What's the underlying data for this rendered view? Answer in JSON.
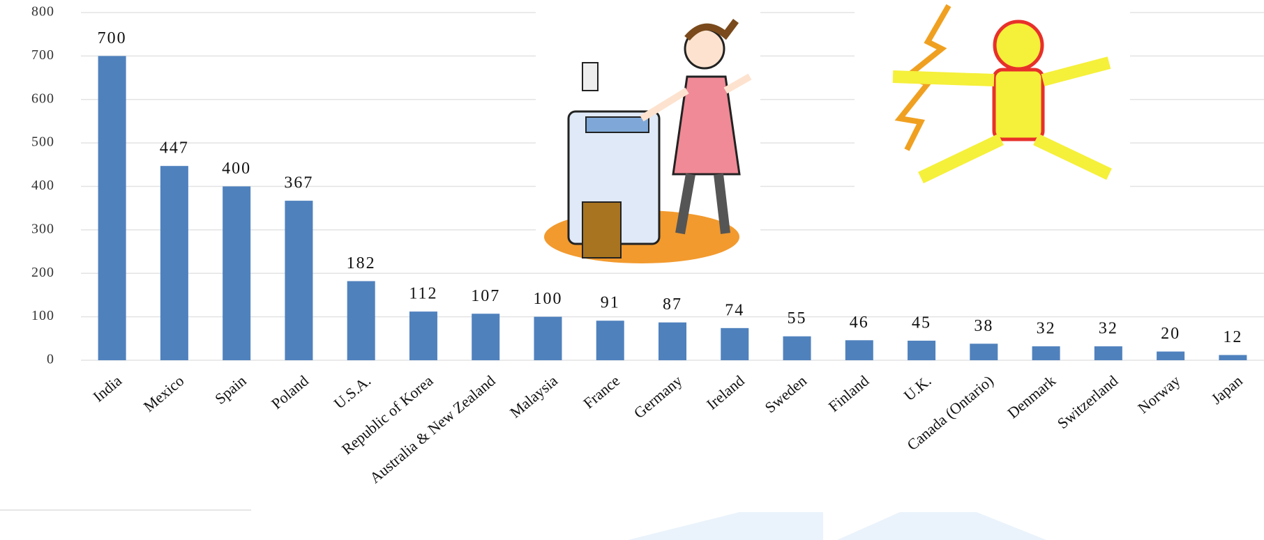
{
  "chart_data": {
    "type": "bar",
    "categories": [
      "India",
      "Mexico",
      "Spain",
      "Poland",
      "U.S.A.",
      "Republic of Korea",
      "Australia & New Zealand",
      "Malaysia",
      "France",
      "Germany",
      "Ireland",
      "Sweden",
      "Finland",
      "U.K.",
      "Canada (Ontario)",
      "Denmark",
      "Switzerland",
      "Norway",
      "Japan"
    ],
    "values": [
      700,
      447,
      400,
      367,
      182,
      112,
      107,
      100,
      91,
      87,
      74,
      55,
      46,
      45,
      38,
      32,
      32,
      20,
      12
    ],
    "color": "#4f81bd",
    "ylim": [
      0,
      800
    ],
    "yticks": [
      0,
      100,
      200,
      300,
      400,
      500,
      600,
      700,
      800
    ],
    "grid": true
  }
}
